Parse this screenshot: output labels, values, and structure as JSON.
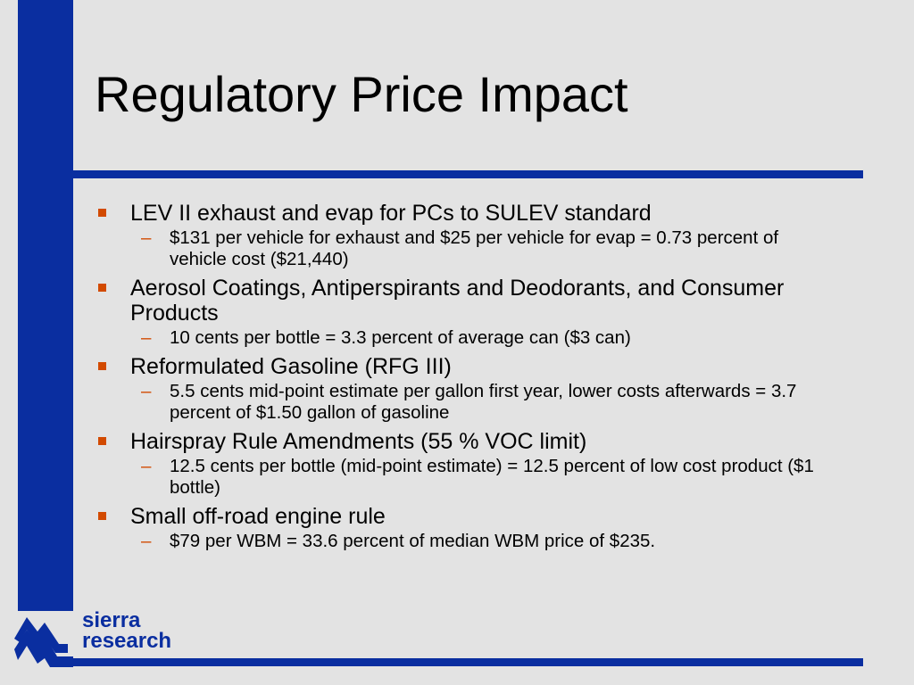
{
  "slide": {
    "title": "Regulatory Price Impact",
    "items": [
      {
        "text": "LEV II exhaust and evap for PCs to SULEV standard",
        "subs": [
          "$131 per vehicle for exhaust and $25 per vehicle for evap = 0.73 percent of vehicle cost ($21,440)"
        ]
      },
      {
        "text": "Aerosol Coatings, Antiperspirants and Deodorants, and Consumer Products",
        "subs": [
          "10 cents per bottle = 3.3 percent of average can ($3 can)"
        ]
      },
      {
        "text": "Reformulated Gasoline (RFG III)",
        "subs": [
          "5.5 cents mid-point estimate per gallon first year, lower costs afterwards = 3.7 percent of $1.50 gallon of gasoline"
        ]
      },
      {
        "text": "Hairspray Rule Amendments (55 % VOC limit)",
        "subs": [
          "12.5 cents per bottle (mid-point estimate)  = 12.5 percent of low cost product ($1 bottle)"
        ]
      },
      {
        "text": "Small off-road engine rule",
        "subs": [
          "$79 per WBM = 33.6 percent of median WBM price of $235."
        ]
      }
    ]
  },
  "brand": {
    "line1": "sierra",
    "line2": "research",
    "logo_icon": "mountain-logo-icon"
  },
  "colors": {
    "accent_blue": "#0a2ea0",
    "bullet_orange": "#d24a00",
    "background": "#e3e3e3"
  }
}
